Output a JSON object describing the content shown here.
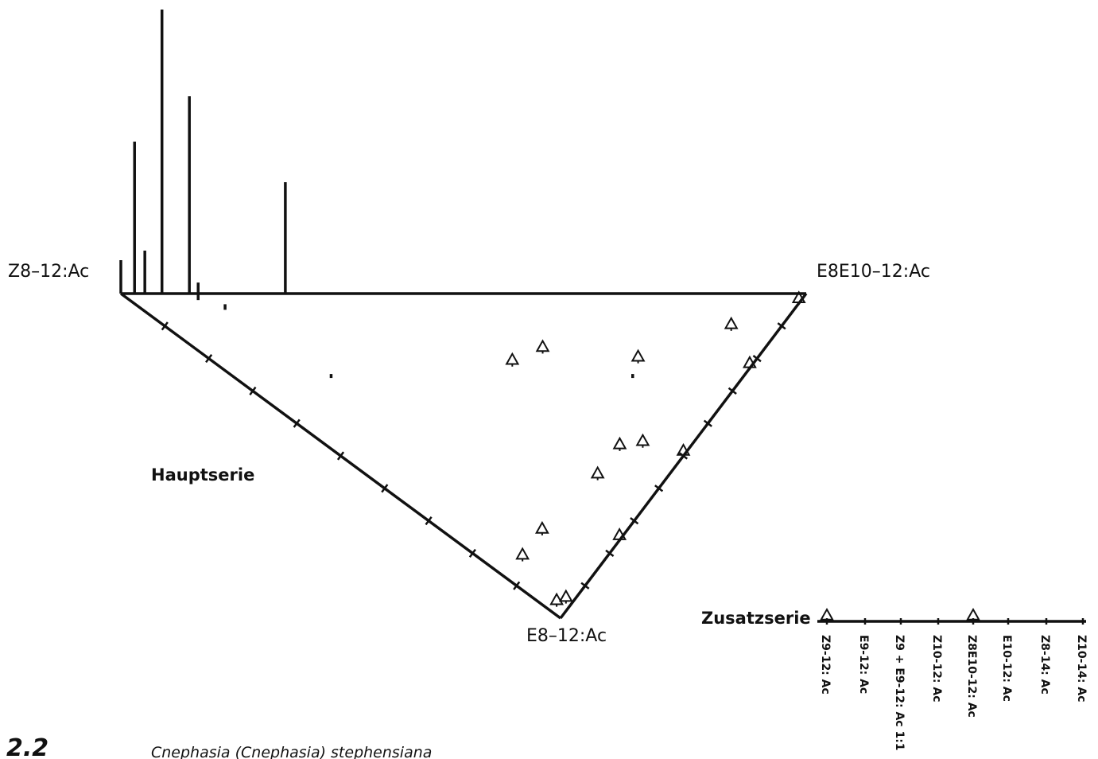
{
  "figure": {
    "number": "2.2",
    "caption": "Cnephasia (Cnephasia) stephensiana"
  },
  "chart_data": [
    {
      "type": "ternary",
      "series_label": "Hauptserie",
      "vertices": {
        "left": "Z8–12:Ac",
        "right": "E8E10–12:Ac",
        "bottom": "E8–12:Ac"
      },
      "ticks_per_side": 10,
      "bars": [
        {
          "a": 0,
          "b": 100,
          "value": 42
        },
        {
          "a": 2,
          "b": 98,
          "value": 191
        },
        {
          "a": 3.5,
          "b": 96.5,
          "value": 54
        },
        {
          "a": 6,
          "b": 94,
          "value": 357
        },
        {
          "a": 10,
          "b": 90,
          "value": 248
        },
        {
          "a": 24,
          "b": 76,
          "value": 140
        },
        {
          "a": 10,
          "b": 88,
          "value": 22
        },
        {
          "a": 12,
          "b": 83,
          "value": 7
        },
        {
          "a": 14,
          "b": 60,
          "value": 5
        },
        {
          "a": 58,
          "b": 16,
          "value": 5
        }
      ],
      "triangles": [
        {
          "a": 24,
          "b": 0
        },
        {
          "a": 50,
          "b": 0
        },
        {
          "a": 77,
          "b": 0
        },
        {
          "a": 97,
          "b": 0
        },
        {
          "a": 46,
          "b": 7
        },
        {
          "a": 82,
          "b": 7
        },
        {
          "a": 43,
          "b": 35
        },
        {
          "a": 50,
          "b": 32
        },
        {
          "a": 62,
          "b": 17
        },
        {
          "a": 42,
          "b": 10
        },
        {
          "a": 33,
          "b": 10
        },
        {
          "a": 14,
          "b": 12
        },
        {
          "a": 6,
          "b": 12
        },
        {
          "a": 4,
          "b": 1
        },
        {
          "a": 2,
          "b": 2
        }
      ]
    },
    {
      "type": "line-axis",
      "series_label": "Zusatzserie",
      "categories": [
        "Z9-12: Ac",
        "E9-12: Ac",
        "Z9 + E9-12: Ac 1:1",
        "Z10-12: Ac",
        "Z8E10-12: Ac",
        "E10-12: Ac",
        "Z8-14: Ac",
        "Z10-14: Ac"
      ],
      "responders": [
        {
          "category": "Z9-12: Ac",
          "type": "triangle"
        },
        {
          "category": "Z8E10-12: Ac",
          "type": "triangle"
        }
      ]
    }
  ]
}
